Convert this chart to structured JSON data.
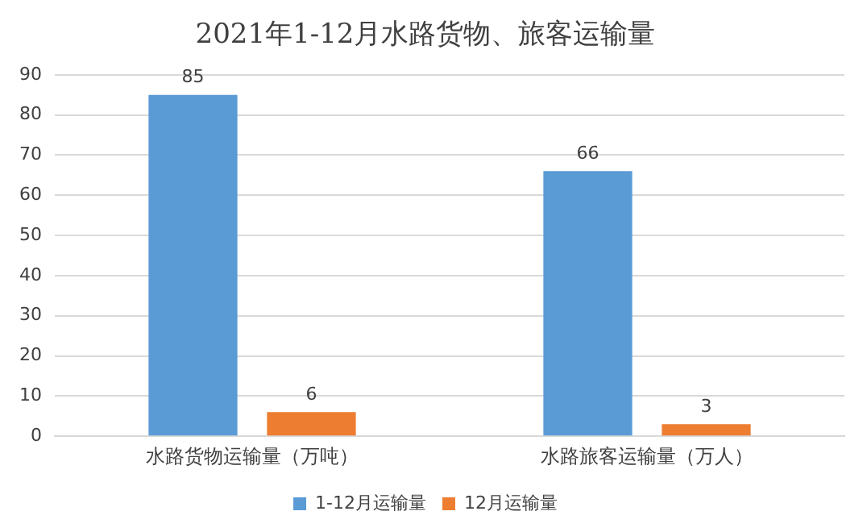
{
  "chart_data": {
    "type": "bar",
    "title": "2021年1-12月水路货物、旅客运输量",
    "categories": [
      "水路货物运输量（万吨）",
      "水路旅客运输量（万人）"
    ],
    "series": [
      {
        "name": "1-12月运输量",
        "color": "#5b9bd5",
        "values": [
          85,
          66
        ]
      },
      {
        "name": "12月运输量",
        "color": "#ed7d31",
        "values": [
          6,
          3
        ]
      }
    ],
    "ylim": [
      0,
      90
    ],
    "yticks": [
      0,
      10,
      20,
      30,
      40,
      50,
      60,
      70,
      80,
      90
    ],
    "grid": "y",
    "legend": "bottom",
    "data_labels": true
  }
}
